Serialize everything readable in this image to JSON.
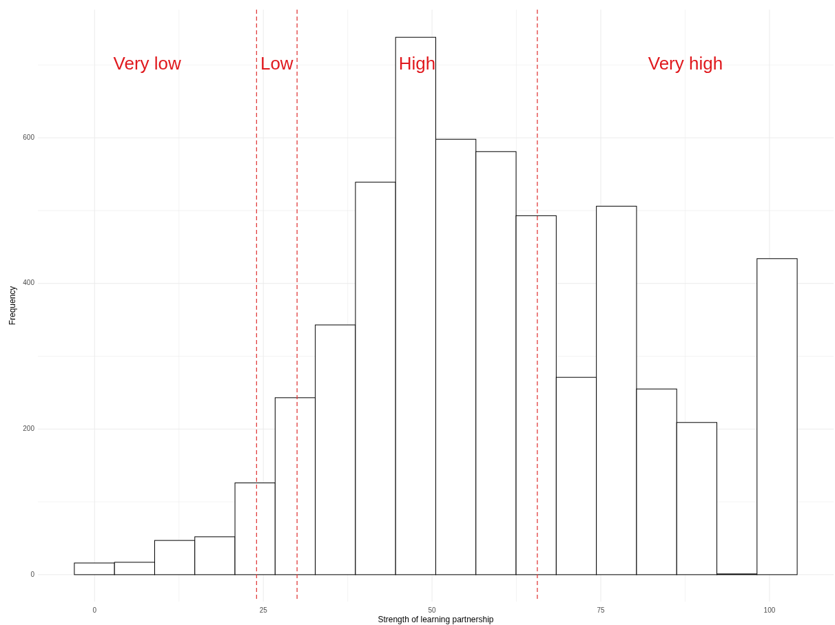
{
  "chart_data": {
    "type": "histogram",
    "xlabel": "Strength of learning partnership",
    "ylabel": "Frequency",
    "bins": [
      -3,
      2.95,
      8.9,
      14.85,
      20.8,
      26.75,
      32.7,
      38.65,
      44.6,
      50.55,
      56.5,
      62.45,
      68.4,
      74.35,
      80.3,
      86.25,
      92.2,
      98.15,
      104.1
    ],
    "values": [
      16,
      17,
      47,
      52,
      126,
      243,
      343,
      539,
      738,
      598,
      581,
      493,
      271,
      506,
      255,
      209,
      1,
      434
    ],
    "color": "#ffffff",
    "xlim": [
      -8.4,
      109.5
    ],
    "ylim": [
      -37,
      776
    ],
    "xticks": [
      0,
      {
        "value": 12.5,
        "label": null
      },
      25,
      {
        "value": 37.5,
        "label": null
      },
      50,
      {
        "value": 62.5,
        "label": null
      },
      75,
      {
        "value": 87.5,
        "label": null
      },
      100
    ],
    "yticks": [
      0,
      {
        "value": 100,
        "label": null
      },
      200,
      {
        "value": 300,
        "label": null
      },
      400,
      {
        "value": 500,
        "label": null
      },
      600,
      {
        "value": 700,
        "label": null
      }
    ],
    "grid": true,
    "ref_lines": [
      {
        "axis": "x",
        "value": 24,
        "color": "#e03c3c",
        "line_style": "dashed"
      },
      {
        "axis": "x",
        "value": 30,
        "color": "#e03c3c",
        "line_style": "dashed"
      },
      {
        "axis": "x",
        "value": 65.6,
        "color": "#e03c3c",
        "line_style": "dashed"
      }
    ],
    "annotations": [
      "Very low",
      "Low",
      "High",
      "Very high"
    ]
  }
}
